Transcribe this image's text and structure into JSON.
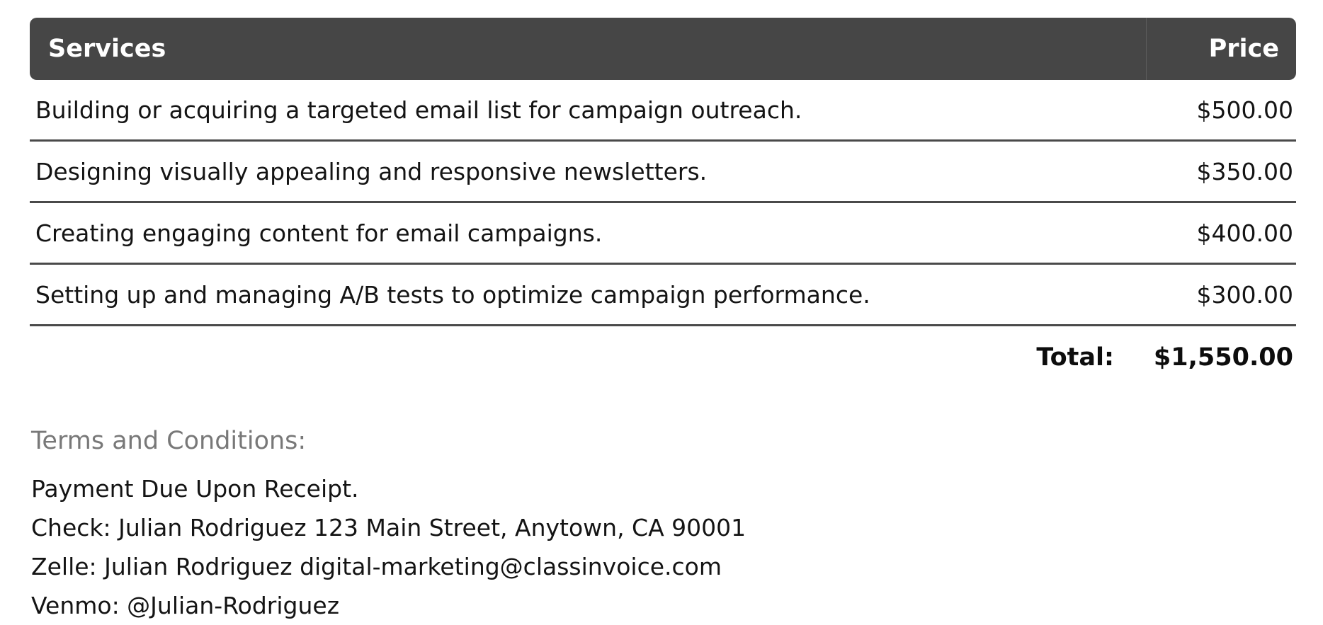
{
  "table": {
    "headers": {
      "service": "Services",
      "price": "Price"
    },
    "rows": [
      {
        "service": "Building or acquiring a targeted email list for campaign outreach.",
        "price": "$500.00"
      },
      {
        "service": "Designing visually appealing and responsive newsletters.",
        "price": "$350.00"
      },
      {
        "service": "Creating engaging content for email campaigns.",
        "price": "$400.00"
      },
      {
        "service": "Setting up and managing A/B tests to optimize campaign performance.",
        "price": "$300.00"
      }
    ],
    "total_label": "Total:",
    "total_value": "$1,550.00"
  },
  "terms": {
    "heading": "Terms and Conditions:",
    "lines": [
      "Payment Due Upon Receipt.",
      "Check: Julian Rodriguez 123 Main Street, Anytown, CA 90001",
      "Zelle: Julian Rodriguez digital-marketing@classinvoice.com",
      "Venmo: @Julian-Rodriguez"
    ]
  },
  "colors": {
    "header_bg": "#464646",
    "header_text": "#ffffff",
    "divider": "#4a4a4a",
    "terms_heading_text": "#787878",
    "body_text": "#141414"
  }
}
